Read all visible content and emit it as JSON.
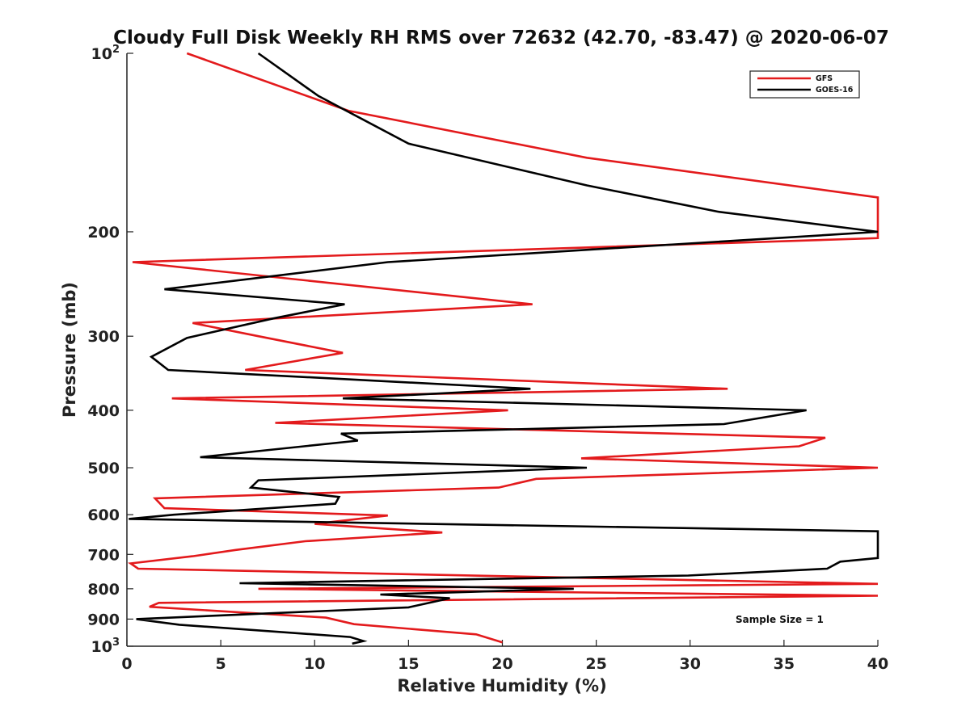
{
  "chart_data": {
    "type": "line",
    "title": "Cloudy Full Disk Weekly RH RMS over 72632 (42.70, -83.47) @ 2020-06-07",
    "xlabel": "Relative Humidity (%)",
    "ylabel": "Pressure (mb)",
    "xlim": [
      0,
      40
    ],
    "ylim": [
      100,
      1000
    ],
    "yscale": "log",
    "y_reversed": true,
    "x_ticks": [
      0,
      5,
      10,
      15,
      20,
      25,
      30,
      35,
      40
    ],
    "y_ticks": [
      {
        "value": 100,
        "base": "10",
        "exp": "2"
      },
      {
        "value": 200,
        "label": "200"
      },
      {
        "value": 300,
        "label": "300"
      },
      {
        "value": 400,
        "label": "400"
      },
      {
        "value": 500,
        "label": "500"
      },
      {
        "value": 600,
        "label": "600"
      },
      {
        "value": 700,
        "label": "700"
      },
      {
        "value": 800,
        "label": "800"
      },
      {
        "value": 900,
        "label": "900"
      },
      {
        "value": 1000,
        "base": "10",
        "exp": "3"
      }
    ],
    "legend_position": "top-right",
    "annotation": "Sample Size = 1",
    "series": [
      {
        "name": "GFS",
        "color": "#e31a1c",
        "points": [
          [
            3.2,
            100
          ],
          [
            11.8,
            125
          ],
          [
            24.5,
            150
          ],
          [
            40.0,
            175
          ],
          [
            40.0,
            205
          ],
          [
            0.3,
            225
          ],
          [
            21.6,
            265
          ],
          [
            3.5,
            285
          ],
          [
            7.0,
            300
          ],
          [
            11.5,
            320
          ],
          [
            6.3,
            342
          ],
          [
            32.0,
            368
          ],
          [
            2.4,
            382
          ],
          [
            20.3,
            400
          ],
          [
            7.9,
            420
          ],
          [
            37.2,
            445
          ],
          [
            35.8,
            460
          ],
          [
            24.2,
            482
          ],
          [
            40.0,
            500
          ],
          [
            21.8,
            522
          ],
          [
            19.8,
            540
          ],
          [
            1.5,
            563
          ],
          [
            2.0,
            585
          ],
          [
            13.9,
            602
          ],
          [
            10.0,
            622
          ],
          [
            16.8,
            643
          ],
          [
            9.5,
            665
          ],
          [
            5.8,
            688
          ],
          [
            3.5,
            705
          ],
          [
            0.2,
            725
          ],
          [
            0.6,
            740
          ],
          [
            40.0,
            785
          ],
          [
            7.0,
            800
          ],
          [
            40.0,
            822
          ],
          [
            1.7,
            845
          ],
          [
            1.2,
            858
          ],
          [
            10.6,
            895
          ],
          [
            12.1,
            918
          ],
          [
            18.6,
            955
          ],
          [
            20.0,
            985
          ]
        ]
      },
      {
        "name": "GOES-16",
        "color": "#000000",
        "points": [
          [
            7.0,
            100
          ],
          [
            10.2,
            118
          ],
          [
            15.0,
            142
          ],
          [
            24.5,
            167
          ],
          [
            31.5,
            185
          ],
          [
            40.0,
            200
          ],
          [
            13.9,
            225
          ],
          [
            2.0,
            250
          ],
          [
            11.6,
            265
          ],
          [
            7.8,
            280
          ],
          [
            3.2,
            302
          ],
          [
            1.3,
            325
          ],
          [
            2.2,
            342
          ],
          [
            21.5,
            368
          ],
          [
            11.5,
            382
          ],
          [
            36.2,
            400
          ],
          [
            31.8,
            422
          ],
          [
            11.4,
            438
          ],
          [
            12.3,
            450
          ],
          [
            3.9,
            480
          ],
          [
            24.5,
            500
          ],
          [
            7.0,
            525
          ],
          [
            6.6,
            540
          ],
          [
            11.3,
            560
          ],
          [
            11.1,
            575
          ],
          [
            2.5,
            600
          ],
          [
            0.1,
            610
          ],
          [
            40.0,
            640
          ],
          [
            40.0,
            710
          ],
          [
            38.0,
            720
          ],
          [
            37.3,
            740
          ],
          [
            29.9,
            760
          ],
          [
            6.0,
            783
          ],
          [
            23.8,
            800
          ],
          [
            13.5,
            818
          ],
          [
            17.2,
            830
          ],
          [
            15.0,
            860
          ],
          [
            0.5,
            900
          ],
          [
            2.8,
            920
          ],
          [
            11.9,
            965
          ],
          [
            12.6,
            980
          ],
          [
            12.0,
            990
          ]
        ]
      }
    ]
  }
}
